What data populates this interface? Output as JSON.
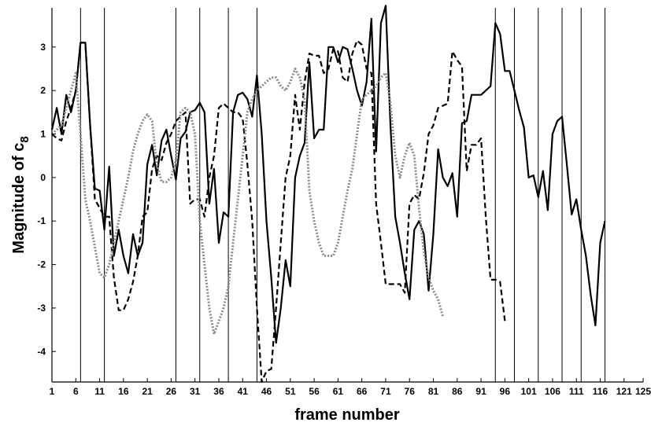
{
  "chart_data": {
    "type": "line",
    "xlabel": "frame number",
    "ylabel": "Magnitude of c",
    "ylabel_subscript": "8",
    "xlim": [
      1,
      125
    ],
    "ylim": [
      -4.7,
      3.9
    ],
    "xticks": [
      1,
      6,
      11,
      16,
      21,
      26,
      31,
      36,
      41,
      46,
      51,
      56,
      61,
      66,
      71,
      76,
      81,
      86,
      91,
      96,
      101,
      106,
      111,
      116,
      121,
      125
    ],
    "xtick_labels": [
      "1",
      "6",
      "11",
      "16",
      "21",
      "26",
      "31",
      "36",
      "41",
      "46",
      "51",
      "56",
      "61",
      "66",
      "71",
      "76",
      "81",
      "86",
      "91",
      "96",
      "101",
      "106",
      "111",
      "116",
      "121",
      "125"
    ],
    "yticks": [
      -4,
      -3,
      -2,
      -1,
      0,
      1,
      2,
      3
    ],
    "ytick_labels": [
      "-4",
      "-3",
      "-2",
      "-1",
      "0",
      "1",
      "2",
      "3"
    ],
    "grid": false,
    "vertical_lines": [
      7,
      12,
      27,
      32,
      38,
      44,
      94,
      98,
      103,
      108,
      112,
      117
    ],
    "series": [
      {
        "style": "solid",
        "color": "#000000",
        "points": [
          [
            1,
            1.1
          ],
          [
            2,
            1.6
          ],
          [
            3,
            1.0
          ],
          [
            4,
            1.9
          ],
          [
            5,
            1.5
          ],
          [
            6,
            2.0
          ],
          [
            7,
            3.1
          ],
          [
            8,
            3.1
          ],
          [
            9,
            1.2
          ],
          [
            10,
            -0.25
          ],
          [
            11,
            -0.3
          ],
          [
            12,
            -1.2
          ],
          [
            13,
            0.25
          ],
          [
            14,
            -1.8
          ],
          [
            15,
            -1.2
          ],
          [
            16,
            -1.8
          ],
          [
            17,
            -2.2
          ],
          [
            18,
            -1.3
          ],
          [
            19,
            -1.8
          ],
          [
            20,
            -1.5
          ],
          [
            21,
            0.3
          ],
          [
            22,
            0.75
          ],
          [
            23,
            0.05
          ],
          [
            24,
            0.85
          ],
          [
            25,
            1.1
          ],
          [
            26,
            0.5
          ],
          [
            27,
            -0.05
          ],
          [
            28,
            0.9
          ],
          [
            29,
            1.05
          ],
          [
            30,
            1.5
          ],
          [
            31,
            1.55
          ],
          [
            32,
            1.72
          ],
          [
            33,
            1.5
          ],
          [
            34,
            -0.6
          ],
          [
            35,
            0.2
          ],
          [
            36,
            -1.5
          ],
          [
            37,
            -0.8
          ],
          [
            38,
            -0.9
          ],
          [
            39,
            1.5
          ],
          [
            40,
            1.9
          ],
          [
            41,
            1.95
          ],
          [
            42,
            1.8
          ],
          [
            43,
            1.4
          ],
          [
            44,
            2.35
          ],
          [
            45,
            1.0
          ],
          [
            46,
            -1.0
          ],
          [
            47,
            -2.3
          ],
          [
            48,
            -3.8
          ],
          [
            49,
            -3.0
          ],
          [
            50,
            -1.9
          ],
          [
            51,
            -2.5
          ],
          [
            52,
            0.0
          ],
          [
            53,
            0.5
          ],
          [
            54,
            0.8
          ],
          [
            55,
            2.65
          ],
          [
            56,
            0.9
          ],
          [
            57,
            1.1
          ],
          [
            58,
            1.1
          ],
          [
            59,
            3.0
          ],
          [
            60,
            3.0
          ],
          [
            61,
            2.65
          ],
          [
            62,
            3.0
          ],
          [
            63,
            2.95
          ],
          [
            64,
            2.5
          ],
          [
            65,
            2.0
          ],
          [
            66,
            1.65
          ],
          [
            67,
            2.2
          ],
          [
            68,
            3.65
          ],
          [
            69,
            0.6
          ],
          [
            70,
            3.55
          ],
          [
            71,
            3.95
          ],
          [
            72,
            1.2
          ],
          [
            73,
            -0.9
          ],
          [
            74,
            -1.5
          ],
          [
            75,
            -2.2
          ],
          [
            76,
            -2.8
          ],
          [
            77,
            -1.2
          ],
          [
            78,
            -1.0
          ],
          [
            79,
            -1.3
          ],
          [
            80,
            -2.6
          ],
          [
            81,
            -1.3
          ],
          [
            82,
            0.65
          ],
          [
            83,
            0.0
          ],
          [
            84,
            -0.2
          ],
          [
            85,
            0.1
          ],
          [
            86,
            -0.9
          ],
          [
            87,
            1.25
          ],
          [
            88,
            1.3
          ],
          [
            89,
            1.9
          ],
          [
            90,
            1.9
          ],
          [
            91,
            1.9
          ],
          [
            92,
            2.0
          ],
          [
            93,
            2.1
          ],
          [
            94,
            3.55
          ],
          [
            95,
            3.3
          ],
          [
            96,
            2.45
          ],
          [
            97,
            2.45
          ],
          [
            98,
            2.0
          ],
          [
            99,
            1.55
          ],
          [
            100,
            1.15
          ],
          [
            101,
            0.0
          ],
          [
            102,
            0.05
          ],
          [
            103,
            -0.45
          ],
          [
            104,
            0.15
          ],
          [
            105,
            -0.75
          ],
          [
            106,
            1.0
          ],
          [
            107,
            1.3
          ],
          [
            108,
            1.4
          ],
          [
            109,
            0.3
          ],
          [
            110,
            -0.85
          ],
          [
            111,
            -0.5
          ],
          [
            112,
            -1.2
          ],
          [
            113,
            -1.8
          ],
          [
            114,
            -2.7
          ],
          [
            115,
            -3.4
          ],
          [
            116,
            -1.5
          ],
          [
            117,
            -1.0
          ]
        ]
      },
      {
        "style": "dashed",
        "color": "#000000",
        "points": [
          [
            1,
            1.0
          ],
          [
            2,
            0.9
          ],
          [
            3,
            0.85
          ],
          [
            4,
            1.3
          ],
          [
            5,
            1.6
          ],
          [
            6,
            2.0
          ],
          [
            7,
            3.1
          ],
          [
            8,
            3.1
          ],
          [
            9,
            1.2
          ],
          [
            10,
            -0.5
          ],
          [
            11,
            -0.7
          ],
          [
            12,
            -0.9
          ],
          [
            13,
            -0.9
          ],
          [
            14,
            -2.3
          ],
          [
            15,
            -3.05
          ],
          [
            16,
            -3.05
          ],
          [
            17,
            -2.8
          ],
          [
            18,
            -2.4
          ],
          [
            19,
            -1.8
          ],
          [
            20,
            -0.9
          ],
          [
            21,
            -0.8
          ],
          [
            22,
            0.2
          ],
          [
            23,
            0.5
          ],
          [
            24,
            0.4
          ],
          [
            25,
            0.8
          ],
          [
            26,
            1.0
          ],
          [
            27,
            1.3
          ],
          [
            28,
            1.4
          ],
          [
            29,
            1.5
          ],
          [
            30,
            -0.6
          ],
          [
            31,
            -0.5
          ],
          [
            32,
            -0.5
          ],
          [
            33,
            -0.9
          ],
          [
            34,
            0.0
          ],
          [
            35,
            0.5
          ],
          [
            36,
            1.6
          ],
          [
            37,
            1.7
          ],
          [
            38,
            1.6
          ],
          [
            39,
            1.5
          ],
          [
            40,
            1.5
          ],
          [
            41,
            1.35
          ],
          [
            42,
            0.3
          ],
          [
            43,
            -1.0
          ],
          [
            44,
            -3.0
          ],
          [
            45,
            -4.7
          ],
          [
            46,
            -4.45
          ],
          [
            47,
            -4.4
          ],
          [
            48,
            -3.0
          ],
          [
            49,
            -1.5
          ],
          [
            50,
            0.0
          ],
          [
            51,
            0.5
          ],
          [
            52,
            1.9
          ],
          [
            53,
            1.1
          ],
          [
            54,
            2.2
          ],
          [
            55,
            2.85
          ],
          [
            56,
            2.8
          ],
          [
            57,
            2.8
          ],
          [
            58,
            2.4
          ],
          [
            59,
            2.5
          ],
          [
            60,
            2.95
          ],
          [
            61,
            2.9
          ],
          [
            62,
            2.3
          ],
          [
            63,
            2.2
          ],
          [
            64,
            2.85
          ],
          [
            65,
            3.15
          ],
          [
            66,
            3.05
          ],
          [
            67,
            2.5
          ],
          [
            68,
            2.4
          ],
          [
            69,
            -0.6
          ],
          [
            70,
            -1.5
          ],
          [
            71,
            -2.45
          ],
          [
            72,
            -2.45
          ],
          [
            73,
            -2.45
          ],
          [
            74,
            -2.45
          ],
          [
            75,
            -2.65
          ],
          [
            76,
            -0.6
          ],
          [
            77,
            -0.4
          ],
          [
            78,
            -0.5
          ],
          [
            79,
            0.1
          ],
          [
            80,
            1.0
          ],
          [
            81,
            1.2
          ],
          [
            82,
            1.6
          ],
          [
            83,
            1.65
          ],
          [
            84,
            1.7
          ],
          [
            85,
            2.9
          ],
          [
            86,
            2.7
          ],
          [
            87,
            2.55
          ],
          [
            88,
            0.15
          ],
          [
            89,
            0.75
          ],
          [
            90,
            0.75
          ],
          [
            91,
            0.9
          ],
          [
            92,
            -0.9
          ],
          [
            93,
            -2.35
          ],
          [
            94,
            -2.35
          ],
          [
            95,
            -2.4
          ],
          [
            96,
            -3.3
          ]
        ]
      },
      {
        "style": "dotted",
        "color": "#8c8c8c",
        "points": [
          [
            1,
            1.0
          ],
          [
            2,
            1.1
          ],
          [
            3,
            1.2
          ],
          [
            4,
            1.6
          ],
          [
            5,
            2.0
          ],
          [
            6,
            2.4
          ],
          [
            7,
            1.0
          ],
          [
            8,
            -0.5
          ],
          [
            9,
            -1.0
          ],
          [
            10,
            -1.6
          ],
          [
            11,
            -2.2
          ],
          [
            12,
            -2.3
          ],
          [
            13,
            -2.0
          ],
          [
            14,
            -1.5
          ],
          [
            15,
            -1.0
          ],
          [
            16,
            -0.5
          ],
          [
            17,
            0.0
          ],
          [
            18,
            0.6
          ],
          [
            19,
            1.0
          ],
          [
            20,
            1.3
          ],
          [
            21,
            1.45
          ],
          [
            22,
            1.3
          ],
          [
            23,
            0.3
          ],
          [
            24,
            -0.1
          ],
          [
            25,
            -0.1
          ],
          [
            26,
            0.0
          ],
          [
            27,
            0.4
          ],
          [
            28,
            1.5
          ],
          [
            29,
            1.6
          ],
          [
            30,
            1.5
          ],
          [
            31,
            1.0
          ],
          [
            32,
            -1.0
          ],
          [
            33,
            -2.0
          ],
          [
            34,
            -3.0
          ],
          [
            35,
            -3.6
          ],
          [
            36,
            -3.3
          ],
          [
            37,
            -3.0
          ],
          [
            38,
            -2.5
          ],
          [
            39,
            -1.5
          ],
          [
            40,
            -0.5
          ],
          [
            41,
            0.5
          ],
          [
            42,
            1.5
          ],
          [
            43,
            1.8
          ],
          [
            44,
            2.0
          ],
          [
            45,
            2.1
          ],
          [
            46,
            2.2
          ],
          [
            47,
            2.3
          ],
          [
            48,
            2.3
          ],
          [
            49,
            2.1
          ],
          [
            50,
            2.0
          ],
          [
            51,
            2.2
          ],
          [
            52,
            2.5
          ],
          [
            53,
            2.3
          ],
          [
            54,
            1.8
          ],
          [
            55,
            -0.3
          ],
          [
            56,
            -1.0
          ],
          [
            57,
            -1.5
          ],
          [
            58,
            -1.8
          ],
          [
            59,
            -1.8
          ],
          [
            60,
            -1.8
          ],
          [
            61,
            -1.5
          ],
          [
            62,
            -0.9
          ],
          [
            63,
            -0.3
          ],
          [
            64,
            0.2
          ],
          [
            65,
            1.0
          ],
          [
            66,
            1.8
          ],
          [
            67,
            1.9
          ],
          [
            68,
            2.0
          ],
          [
            69,
            2.1
          ],
          [
            70,
            2.3
          ],
          [
            71,
            2.4
          ],
          [
            72,
            1.7
          ],
          [
            73,
            0.5
          ],
          [
            74,
            0.0
          ],
          [
            75,
            0.5
          ],
          [
            76,
            0.8
          ],
          [
            77,
            0.5
          ],
          [
            78,
            -0.7
          ],
          [
            79,
            -1.7
          ],
          [
            80,
            -2.3
          ],
          [
            81,
            -2.6
          ],
          [
            82,
            -2.8
          ],
          [
            83,
            -3.2
          ]
        ]
      }
    ]
  }
}
